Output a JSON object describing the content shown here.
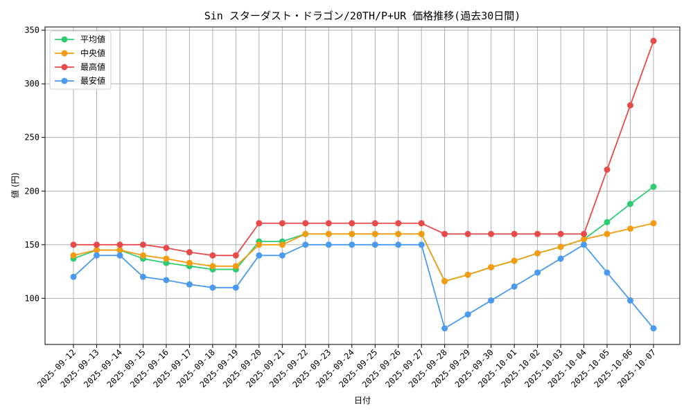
{
  "chart_data": {
    "type": "line",
    "title": "Sin スターダスト・ドラゴン/20TH/P+UR 価格推移(過去30日間)",
    "xlabel": "日付",
    "ylabel": "値 (円)",
    "ylim": [
      57,
      353
    ],
    "yticks": [
      100,
      150,
      200,
      250,
      300,
      350
    ],
    "grid": true,
    "legend_position": "top-left",
    "categories": [
      "2025-09-12",
      "2025-09-13",
      "2025-09-14",
      "2025-09-15",
      "2025-09-16",
      "2025-09-17",
      "2025-09-18",
      "2025-09-19",
      "2025-09-20",
      "2025-09-21",
      "2025-09-22",
      "2025-09-23",
      "2025-09-24",
      "2025-09-25",
      "2025-09-26",
      "2025-09-27",
      "2025-09-28",
      "2025-09-29",
      "2025-09-30",
      "2025-10-01",
      "2025-10-02",
      "2025-10-03",
      "2025-10-04",
      "2025-10-05",
      "2025-10-06",
      "2025-10-07"
    ],
    "series": [
      {
        "name": "平均値",
        "color": "#2ecc71",
        "values": [
          137,
          145,
          145,
          137,
          133,
          130,
          127,
          127,
          153,
          153,
          160,
          160,
          160,
          160,
          160,
          160,
          116,
          122,
          129,
          135,
          142,
          148,
          155,
          171,
          188,
          204
        ]
      },
      {
        "name": "中央値",
        "color": "#f39c12",
        "values": [
          140,
          145,
          145,
          140,
          137,
          133,
          130,
          130,
          150,
          150,
          160,
          160,
          160,
          160,
          160,
          160,
          116,
          122,
          129,
          135,
          142,
          148,
          155,
          160,
          165,
          170
        ]
      },
      {
        "name": "最高値",
        "color": "#e84a4a",
        "values": [
          150,
          150,
          150,
          150,
          147,
          143,
          140,
          140,
          170,
          170,
          170,
          170,
          170,
          170,
          170,
          170,
          160,
          160,
          160,
          160,
          160,
          160,
          160,
          220,
          280,
          340
        ]
      },
      {
        "name": "最安値",
        "color": "#4a9af0",
        "values": [
          120,
          140,
          140,
          120,
          117,
          113,
          110,
          110,
          140,
          140,
          150,
          150,
          150,
          150,
          150,
          150,
          72,
          85,
          98,
          111,
          124,
          137,
          150,
          124,
          98,
          72
        ]
      }
    ]
  }
}
